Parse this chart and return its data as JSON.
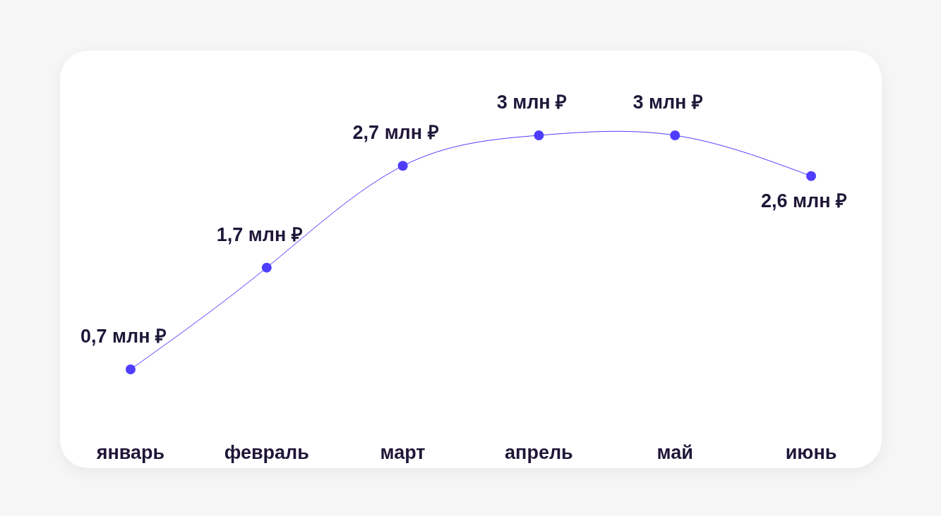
{
  "chart_data": {
    "type": "line",
    "categories": [
      "январь",
      "февраль",
      "март",
      "апрель",
      "май",
      "июнь"
    ],
    "series": [
      {
        "color": "#4f3dff",
        "values": [
          0.7,
          1.7,
          2.7,
          3,
          3,
          2.6
        ],
        "value_labels": [
          "0,7 млн ₽",
          "1,7 млн ₽",
          "2,7 млн ₽",
          "3 млн ₽",
          "3 млн ₽",
          "2,6 млн ₽"
        ]
      }
    ],
    "marker": "circle",
    "line_style": "solid",
    "grid": false,
    "tick_labels": "x"
  }
}
